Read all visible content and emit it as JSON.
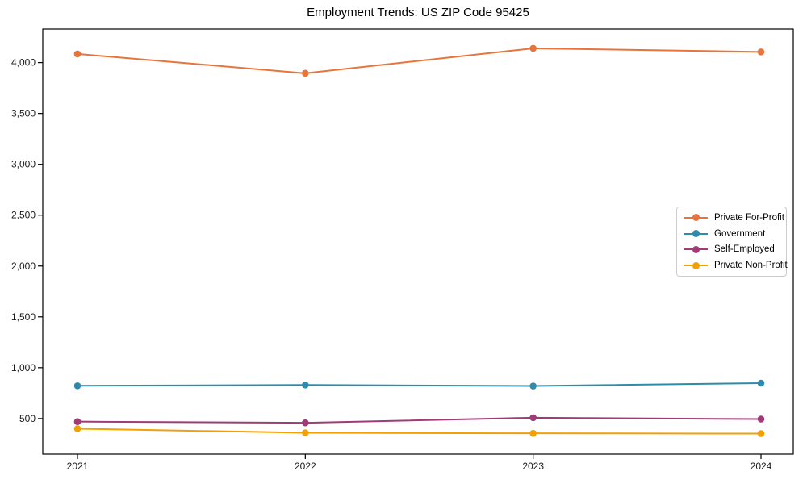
{
  "page": {
    "title": "Employment Trends: US ZIP Code 95425"
  },
  "chart_data": {
    "type": "line",
    "title": "Employment Trends: US ZIP Code 95425",
    "xlabel": "",
    "ylabel": "",
    "categories": [
      "2021",
      "2022",
      "2023",
      "2024"
    ],
    "series": [
      {
        "name": "Private For-Profit",
        "color": "#e8743b",
        "values": [
          4085,
          3895,
          4140,
          4105
        ]
      },
      {
        "name": "Government",
        "color": "#2f8bab",
        "values": [
          822,
          830,
          820,
          848
        ]
      },
      {
        "name": "Self-Employed",
        "color": "#a23a77",
        "values": [
          470,
          458,
          508,
          495
        ]
      },
      {
        "name": "Private Non-Profit",
        "color": "#f1a104",
        "values": [
          400,
          360,
          355,
          352
        ]
      }
    ],
    "ylim": [
      150,
      4330
    ],
    "yticks": [
      500,
      1000,
      1500,
      2000,
      2500,
      3000,
      3500,
      4000
    ],
    "ytick_labels": [
      "500",
      "1,000",
      "1,500",
      "2,000",
      "2,500",
      "3,000",
      "3,500",
      "4,000"
    ],
    "grid": false,
    "legend_position": "middle-right",
    "marker": "circle",
    "axis_color": "#000000",
    "tick_label_color": "#1a1a1a"
  }
}
